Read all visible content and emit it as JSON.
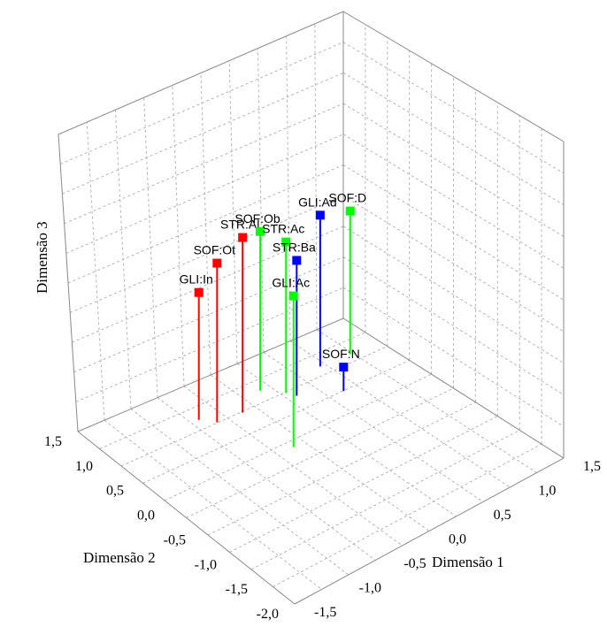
{
  "chart_data": {
    "type": "scatter",
    "title": "",
    "axis_labels": {
      "x": "Dimensão 1",
      "y": "Dimensão 2",
      "z": "Dimensão 3"
    },
    "x_ticks": [
      "-1,5",
      "-1,0",
      "-0,5",
      "0,0",
      "0,5",
      "1,0",
      "1,5"
    ],
    "y_ticks": [
      "-2,0",
      "-1,5",
      "-1,0",
      "-0,5",
      "0,0",
      "0,5",
      "1,0",
      "1,5"
    ],
    "xlim": [
      -1.5,
      1.5
    ],
    "ylim": [
      -2.0,
      1.5
    ],
    "grid": true,
    "colors": {
      "red": "#ff0000",
      "green": "#00ff00",
      "blue": "#0000ff"
    },
    "points": [
      {
        "label": "GLI:In",
        "color": "red",
        "x": -0.6,
        "y": 0.85,
        "z": 0.8
      },
      {
        "label": "SOF:Ot",
        "color": "red",
        "x": -0.5,
        "y": 0.7,
        "z": 1.0
      },
      {
        "label": "STR:Al",
        "color": "red",
        "x": -0.25,
        "y": 0.65,
        "z": 1.1
      },
      {
        "label": "SOF:Ob",
        "color": "green",
        "x": 0.05,
        "y": 0.8,
        "z": 1.0
      },
      {
        "label": "STR:Ac",
        "color": "green",
        "x": 0.2,
        "y": 0.6,
        "z": 0.95
      },
      {
        "label": "GLI:Ac",
        "color": "green",
        "x": -0.2,
        "y": -0.1,
        "z": 0.95
      },
      {
        "label": "STR:Ba",
        "color": "blue",
        "x": 0.25,
        "y": 0.5,
        "z": 0.85
      },
      {
        "label": "GLI:Ad",
        "color": "blue",
        "x": 0.65,
        "y": 0.7,
        "z": 0.95
      },
      {
        "label": "SOF:N",
        "color": "blue",
        "x": 0.6,
        "y": 0.25,
        "z": 0.15
      },
      {
        "label": "SOF:D",
        "color": "green",
        "x": 0.95,
        "y": 0.65,
        "z": 0.9
      }
    ]
  }
}
